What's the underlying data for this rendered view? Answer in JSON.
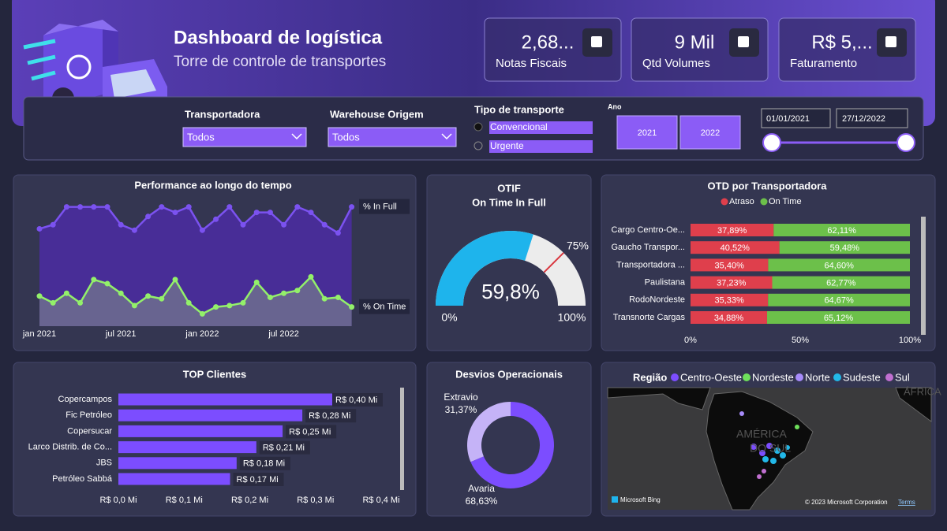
{
  "header": {
    "title": "Dashboard de logística",
    "subtitle": "Torre de controle de transportes"
  },
  "kpis": [
    {
      "value": "2,68...",
      "label": "Notas Fiscais"
    },
    {
      "value": "9 Mil",
      "label": "Qtd Volumes"
    },
    {
      "value": "R$ 5,...",
      "label": "Faturamento"
    }
  ],
  "filters": {
    "transportadora": {
      "label": "Transportadora",
      "value": "Todos"
    },
    "warehouse": {
      "label": "Warehouse Origem",
      "value": "Todos"
    },
    "tipo": {
      "label": "Tipo de transporte",
      "options": [
        "Convencional",
        "Urgente"
      ]
    },
    "ano": {
      "label": "Ano",
      "options": [
        "2021",
        "2022"
      ]
    },
    "dates": [
      "01/01/2021",
      "27/12/2022"
    ]
  },
  "chart_data": [
    {
      "type": "line",
      "title": "Performance ao longo do tempo",
      "categories": [
        "jan 2021",
        null,
        null,
        null,
        null,
        null,
        "jul 2021",
        null,
        null,
        null,
        null,
        null,
        "jan 2022",
        null,
        null,
        null,
        null,
        null,
        "jul 2022",
        null,
        null,
        null,
        null,
        null
      ],
      "series": [
        {
          "name": "% In Full",
          "color": "#7b52f0",
          "values": [
            71,
            74,
            87,
            87,
            87,
            87,
            74,
            70,
            80,
            87,
            83,
            87,
            70,
            78,
            87,
            74,
            83,
            83,
            74,
            87,
            83,
            74,
            68,
            87
          ]
        },
        {
          "name": "% On Time",
          "color": "#93f06a",
          "values": [
            22,
            17,
            24,
            17,
            34,
            31,
            24,
            15,
            22,
            20,
            34,
            17,
            9,
            14,
            15,
            17,
            32,
            21,
            24,
            26,
            36,
            20,
            21,
            14
          ]
        }
      ],
      "ylim": [
        0,
        100
      ]
    },
    {
      "type": "gauge",
      "title": "OTIF",
      "subtitle": "On Time In Full",
      "values": [
        59.8
      ],
      "value_labels": [
        "59,8%"
      ],
      "color": "#1eb4ec",
      "ylim": [
        0,
        100
      ],
      "yticks": [
        {
          "value": 0,
          "label": "0%"
        },
        {
          "value": 100,
          "label": "100%"
        }
      ],
      "target": {
        "value": 75,
        "label": "75%"
      }
    },
    {
      "type": "stacked-barh",
      "title": "OTD por Transportadora",
      "categories": [
        "Cargo Centro-Oe...",
        "Gaucho Transpor...",
        "Transportadora ...",
        "Paulistana",
        "RodoNordeste",
        "Transnorte Cargas"
      ],
      "series": [
        {
          "name": "Atraso",
          "color": "#df3f4c",
          "values": [
            37.89,
            40.52,
            35.4,
            37.23,
            35.33,
            34.88
          ],
          "value_labels": [
            "37,89%",
            "40,52%",
            "35,40%",
            "37,23%",
            "35,33%",
            "34,88%"
          ]
        },
        {
          "name": "On Time",
          "color": "#6cc04a",
          "values": [
            62.11,
            59.48,
            64.6,
            62.77,
            64.67,
            65.12
          ],
          "value_labels": [
            "62,11%",
            "59,48%",
            "64,60%",
            "62,77%",
            "64,67%",
            "65,12%"
          ]
        }
      ],
      "xlim": [
        0,
        100
      ],
      "xticks": [
        {
          "value": 0,
          "label": "0%"
        },
        {
          "value": 50,
          "label": "50%"
        },
        {
          "value": 100,
          "label": "100%"
        }
      ]
    },
    {
      "type": "barh",
      "title": "TOP Clientes",
      "categories": [
        "Copercampos",
        "Fic Petróleo",
        "Copersucar",
        "Larco Distrib. de Co...",
        "JBS",
        "Petróleo Sabbá"
      ],
      "values": [
        0.4,
        0.28,
        0.25,
        0.21,
        0.18,
        0.17
      ],
      "value_labels": [
        "R$ 0,40 Mi",
        "R$ 0,28 Mi",
        "R$ 0,25 Mi",
        "R$ 0,21 Mi",
        "R$ 0,18 Mi",
        "R$ 0,17 Mi"
      ],
      "color": "#7c4dff",
      "xlim": [
        0,
        0.4
      ],
      "xticks": [
        {
          "value": 0,
          "label": "R$ 0,0 Mi"
        },
        {
          "value": 0.1,
          "label": "R$ 0,1 Mi"
        },
        {
          "value": 0.2,
          "label": "R$ 0,2 Mi"
        },
        {
          "value": 0.3,
          "label": "R$ 0,3 Mi"
        },
        {
          "value": 0.4,
          "label": "R$ 0,4 Mi"
        }
      ]
    },
    {
      "type": "donut",
      "title": "Desvios Operacionais",
      "categories": [
        "Extravio",
        "Avaria"
      ],
      "values": [
        31.37,
        68.63
      ],
      "value_labels": [
        "31,37%",
        "68,63%"
      ],
      "colors": [
        "#c5b3f7",
        "#7c4dff"
      ]
    }
  ],
  "map": {
    "legend_title": "Região",
    "regions": [
      {
        "name": "Centro-Oeste",
        "color": "#7c4dff"
      },
      {
        "name": "Nordeste",
        "color": "#6ee05b"
      },
      {
        "name": "Norte",
        "color": "#a78bfa"
      },
      {
        "name": "Sudeste",
        "color": "#22b8e8"
      },
      {
        "name": "Sul",
        "color": "#c06fd0"
      }
    ],
    "labels": [
      "AMÉRICA",
      "DO SUL",
      "ÁFRICA"
    ],
    "attribution": "Microsoft Bing",
    "copyright": "© 2023 Microsoft Corporation",
    "terms": "Terms"
  }
}
